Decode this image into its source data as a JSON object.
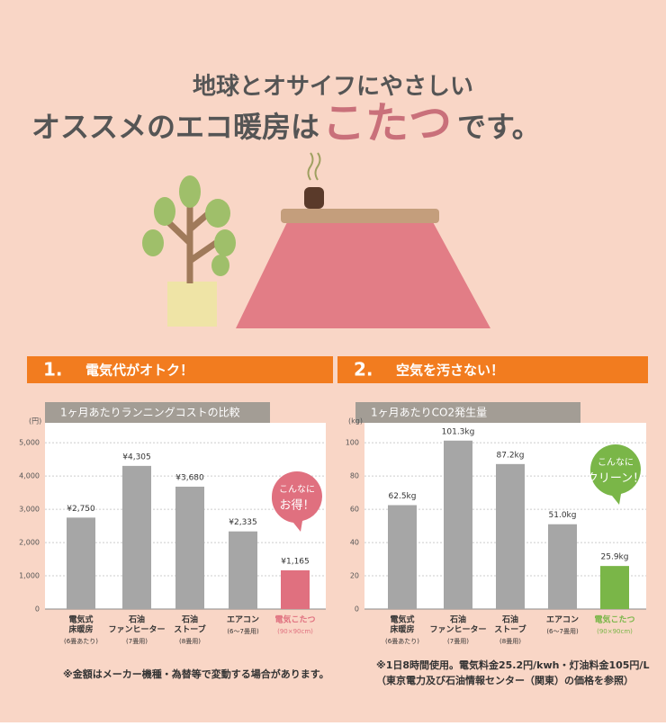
{
  "header": {
    "line1": "地球とオサイフにやさしい",
    "line2a": "オススメのエコ暖房は",
    "line2b": "こたつ",
    "line2c": "です。"
  },
  "sections": [
    {
      "number": "1.",
      "title": "電気代がオトク！"
    },
    {
      "number": "2.",
      "title": "空気を汚さない！"
    }
  ],
  "chart_data": [
    {
      "type": "bar",
      "title": "1ヶ月あたりランニングコストの比較",
      "y_label": "(円)",
      "categories": [
        [
          "電気式",
          "床暖房"
        ],
        [
          "石油",
          "ファンヒーター"
        ],
        [
          "石油",
          "ストーブ"
        ],
        [
          "エアコン"
        ],
        [
          "電気こたつ"
        ]
      ],
      "category_notes": [
        "(6畳あたり)",
        "(7畳用)",
        "(8畳用)",
        "(6〜7畳用)",
        "(90×90cm)"
      ],
      "values": [
        2750,
        4305,
        3680,
        2335,
        1165
      ],
      "value_labels": [
        "¥2,750",
        "¥4,305",
        "¥3,680",
        "¥2,335",
        "¥1,165"
      ],
      "colors": [
        "#a6a6a6",
        "#a6a6a6",
        "#a6a6a6",
        "#a6a6a6",
        "#e0707f"
      ],
      "ylim": [
        0,
        5600
      ],
      "yticks": [
        0,
        {
          "value": 1000,
          "label": "1,000"
        },
        {
          "value": 2000,
          "label": "2,000"
        },
        {
          "value": 3000,
          "label": "3,000"
        },
        {
          "value": 4000,
          "label": "4,000"
        },
        {
          "value": 5000,
          "label": "5,000"
        }
      ],
      "grid": true,
      "callout": [
        "こんなに",
        "お得！"
      ]
    },
    {
      "type": "bar",
      "title": "1ヶ月あたりCO2発生量",
      "y_label": "(kg)",
      "categories": [
        [
          "電気式",
          "床暖房"
        ],
        [
          "石油",
          "ファンヒーター"
        ],
        [
          "石油",
          "ストーブ"
        ],
        [
          "エアコン"
        ],
        [
          "電気こたつ"
        ]
      ],
      "category_notes": [
        "(6畳あたり)",
        "(7畳用)",
        "(8畳用)",
        "(6〜7畳用)",
        "(90×90cm)"
      ],
      "values": [
        62.5,
        101.3,
        87.2,
        51.0,
        25.9
      ],
      "value_labels": [
        "62.5kg",
        "101.3kg",
        "87.2kg",
        "51.0kg",
        "25.9kg"
      ],
      "colors": [
        "#a6a6a6",
        "#a6a6a6",
        "#a6a6a6",
        "#a6a6a6",
        "#7ab648"
      ],
      "ylim": [
        0,
        112
      ],
      "yticks": [
        0,
        20,
        40,
        60,
        80,
        100
      ],
      "grid": true,
      "callout": [
        "こんなに",
        "クリーン！"
      ]
    }
  ],
  "notes": {
    "left": "※金額はメーカー機種・為替等で変動する場合があります。",
    "right1": "※1日8時間使用。電気料金25.2円/kwh・灯油料金105円/L",
    "right2": "（東京電力及び石油情報センター（関東）の価格を参照）"
  }
}
